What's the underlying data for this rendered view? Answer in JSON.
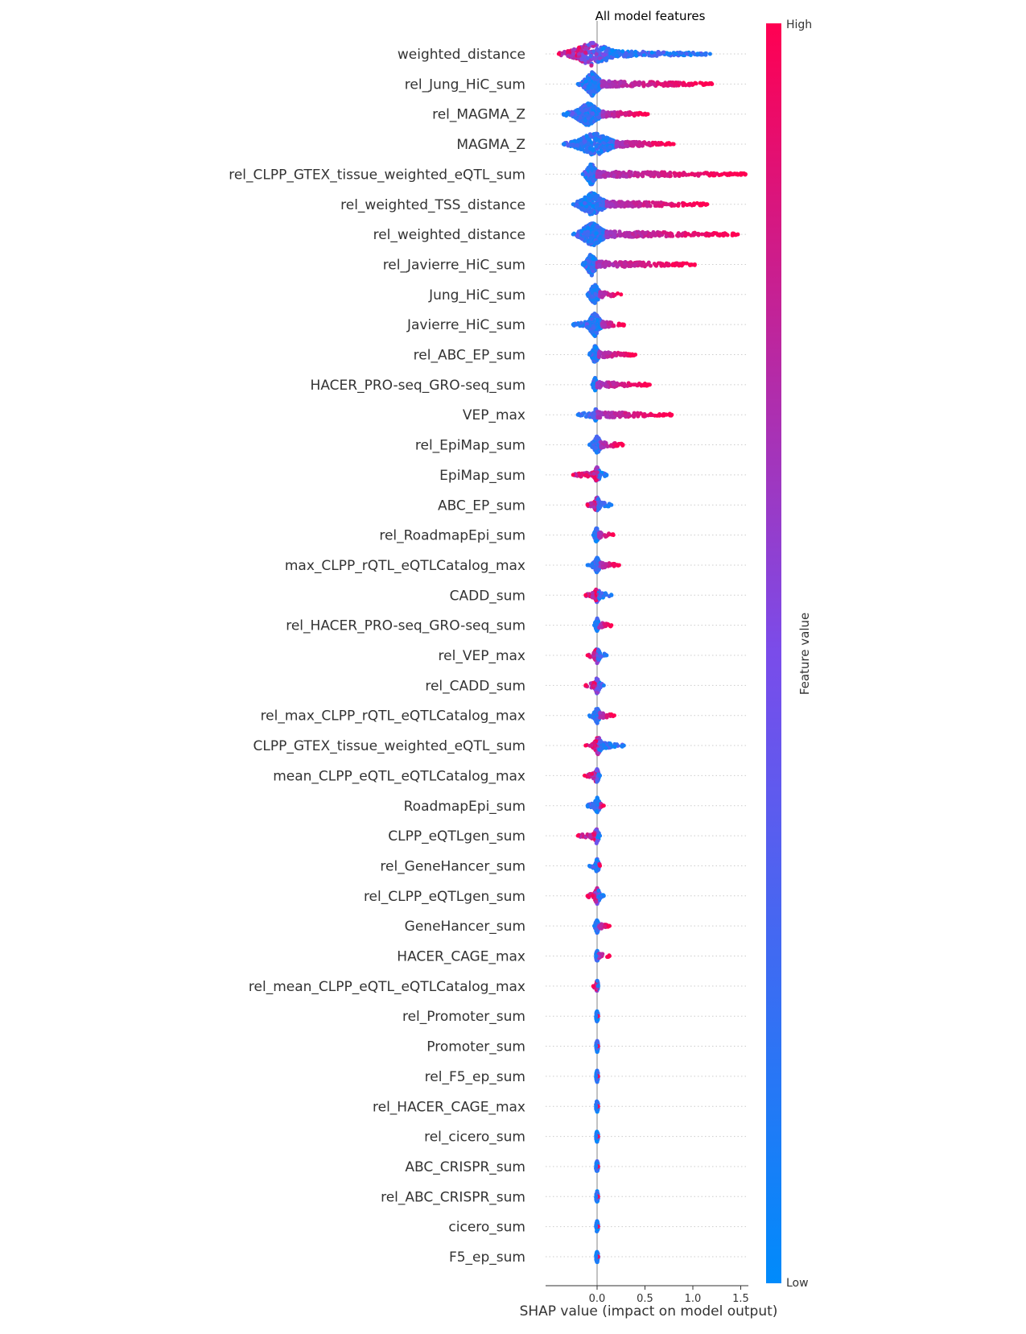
{
  "chart_data": {
    "type": "scatter",
    "title": "All model features",
    "xlabel": "SHAP value (impact on model output)",
    "xlim": [
      -0.5,
      1.6
    ],
    "xticks": [
      0.0,
      0.5,
      1.0,
      1.5
    ],
    "xtick_labels": [
      "0.0",
      "0.5",
      "1.0",
      "1.5"
    ],
    "colorbar": {
      "label": "Feature value",
      "high_label": "High",
      "low_label": "Low",
      "high_color": "#ff0052",
      "low_color": "#008bfb"
    },
    "features": [
      {
        "name": "weighted_distance",
        "min": -0.4,
        "max": 1.18,
        "bulk": [
          -0.3,
          0.2
        ],
        "high_side": "left"
      },
      {
        "name": "rel_Jung_HiC_sum",
        "min": -0.2,
        "max": 1.2,
        "bulk": [
          -0.15,
          0.05
        ],
        "high_side": "right"
      },
      {
        "name": "rel_MAGMA_Z",
        "min": -0.35,
        "max": 0.53,
        "bulk": [
          -0.25,
          0.05
        ],
        "high_side": "right"
      },
      {
        "name": "MAGMA_Z",
        "min": -0.35,
        "max": 0.8,
        "bulk": [
          -0.25,
          0.2
        ],
        "high_side": "right"
      },
      {
        "name": "rel_CLPP_GTEX_tissue_weighted_eQTL_sum",
        "min": -0.15,
        "max": 1.55,
        "bulk": [
          -0.12,
          0.0
        ],
        "high_side": "right"
      },
      {
        "name": "rel_weighted_TSS_distance",
        "min": -0.25,
        "max": 1.15,
        "bulk": [
          -0.2,
          0.1
        ],
        "high_side": "right"
      },
      {
        "name": "rel_weighted_distance",
        "min": -0.25,
        "max": 1.47,
        "bulk": [
          -0.2,
          0.1
        ],
        "high_side": "right"
      },
      {
        "name": "rel_Javierre_HiC_sum",
        "min": -0.15,
        "max": 1.02,
        "bulk": [
          -0.12,
          0.0
        ],
        "high_side": "right"
      },
      {
        "name": "Jung_HiC_sum",
        "min": -0.1,
        "max": 0.25,
        "bulk": [
          -0.08,
          0.03
        ],
        "high_side": "right"
      },
      {
        "name": "Javierre_HiC_sum",
        "min": -0.25,
        "max": 0.28,
        "bulk": [
          -0.1,
          0.05
        ],
        "high_side": "right"
      },
      {
        "name": "rel_ABC_EP_sum",
        "min": -0.08,
        "max": 0.4,
        "bulk": [
          -0.06,
          0.02
        ],
        "high_side": "right"
      },
      {
        "name": "HACER_PRO-seq_GRO-seq_sum",
        "min": -0.05,
        "max": 0.55,
        "bulk": [
          -0.04,
          0.0
        ],
        "high_side": "right"
      },
      {
        "name": "VEP_max",
        "min": -0.2,
        "max": 0.78,
        "bulk": [
          -0.03,
          0.0
        ],
        "high_side": "right"
      },
      {
        "name": "rel_EpiMap_sum",
        "min": -0.08,
        "max": 0.27,
        "bulk": [
          -0.04,
          0.04
        ],
        "high_side": "right"
      },
      {
        "name": "EpiMap_sum",
        "min": -0.25,
        "max": 0.1,
        "bulk": [
          -0.03,
          0.03
        ],
        "high_side": "left"
      },
      {
        "name": "ABC_EP_sum",
        "min": -0.1,
        "max": 0.15,
        "bulk": [
          -0.03,
          0.03
        ],
        "high_side": "left"
      },
      {
        "name": "rel_RoadmapEpi_sum",
        "min": -0.04,
        "max": 0.17,
        "bulk": [
          -0.03,
          0.02
        ],
        "high_side": "right"
      },
      {
        "name": "max_CLPP_rQTL_eQTLCatalog_max",
        "min": -0.1,
        "max": 0.23,
        "bulk": [
          -0.03,
          0.03
        ],
        "high_side": "right"
      },
      {
        "name": "CADD_sum",
        "min": -0.12,
        "max": 0.15,
        "bulk": [
          -0.03,
          0.03
        ],
        "high_side": "left"
      },
      {
        "name": "rel_HACER_PRO-seq_GRO-seq_sum",
        "min": -0.03,
        "max": 0.15,
        "bulk": [
          -0.02,
          0.02
        ],
        "high_side": "right"
      },
      {
        "name": "rel_VEP_max",
        "min": -0.1,
        "max": 0.1,
        "bulk": [
          -0.03,
          0.03
        ],
        "high_side": "left"
      },
      {
        "name": "rel_CADD_sum",
        "min": -0.12,
        "max": 0.07,
        "bulk": [
          -0.03,
          0.03
        ],
        "high_side": "left"
      },
      {
        "name": "rel_max_CLPP_rQTL_eQTLCatalog_max",
        "min": -0.08,
        "max": 0.18,
        "bulk": [
          -0.03,
          0.03
        ],
        "high_side": "right"
      },
      {
        "name": "CLPP_GTEX_tissue_weighted_eQTL_sum",
        "min": -0.12,
        "max": 0.28,
        "bulk": [
          -0.03,
          0.05
        ],
        "high_side": "left"
      },
      {
        "name": "mean_CLPP_eQTL_eQTLCatalog_max",
        "min": -0.13,
        "max": 0.03,
        "bulk": [
          -0.03,
          0.02
        ],
        "high_side": "left"
      },
      {
        "name": "RoadmapEpi_sum",
        "min": -0.1,
        "max": 0.07,
        "bulk": [
          -0.03,
          0.03
        ],
        "high_side": "right"
      },
      {
        "name": "CLPP_eQTLgen_sum",
        "min": -0.2,
        "max": 0.03,
        "bulk": [
          -0.03,
          0.02
        ],
        "high_side": "left"
      },
      {
        "name": "rel_GeneHancer_sum",
        "min": -0.08,
        "max": 0.03,
        "bulk": [
          -0.02,
          0.02
        ],
        "high_side": "right"
      },
      {
        "name": "rel_CLPP_eQTLgen_sum",
        "min": -0.1,
        "max": 0.07,
        "bulk": [
          -0.03,
          0.03
        ],
        "high_side": "left"
      },
      {
        "name": "GeneHancer_sum",
        "min": -0.03,
        "max": 0.13,
        "bulk": [
          -0.02,
          0.02
        ],
        "high_side": "right"
      },
      {
        "name": "HACER_CAGE_max",
        "min": -0.01,
        "max": 0.13,
        "bulk": [
          -0.01,
          0.01
        ],
        "high_side": "right"
      },
      {
        "name": "rel_mean_CLPP_eQTL_eQTLCatalog_max",
        "min": -0.04,
        "max": 0.01,
        "bulk": [
          -0.01,
          0.01
        ],
        "high_side": "left"
      },
      {
        "name": "rel_Promoter_sum",
        "min": -0.01,
        "max": 0.01,
        "bulk": [
          -0.01,
          0.01
        ],
        "high_side": "right"
      },
      {
        "name": "Promoter_sum",
        "min": -0.01,
        "max": 0.01,
        "bulk": [
          -0.01,
          0.01
        ],
        "high_side": "right"
      },
      {
        "name": "rel_F5_ep_sum",
        "min": -0.01,
        "max": 0.01,
        "bulk": [
          -0.01,
          0.01
        ],
        "high_side": "right"
      },
      {
        "name": "rel_HACER_CAGE_max",
        "min": -0.01,
        "max": 0.01,
        "bulk": [
          -0.01,
          0.01
        ],
        "high_side": "right"
      },
      {
        "name": "rel_cicero_sum",
        "min": -0.01,
        "max": 0.01,
        "bulk": [
          -0.01,
          0.01
        ],
        "high_side": "right"
      },
      {
        "name": "ABC_CRISPR_sum",
        "min": -0.01,
        "max": 0.01,
        "bulk": [
          -0.01,
          0.01
        ],
        "high_side": "right"
      },
      {
        "name": "rel_ABC_CRISPR_sum",
        "min": -0.01,
        "max": 0.01,
        "bulk": [
          -0.01,
          0.01
        ],
        "high_side": "right"
      },
      {
        "name": "cicero_sum",
        "min": -0.01,
        "max": 0.01,
        "bulk": [
          -0.01,
          0.01
        ],
        "high_side": "right"
      },
      {
        "name": "F5_ep_sum",
        "min": -0.01,
        "max": 0.01,
        "bulk": [
          -0.01,
          0.01
        ],
        "high_side": "right"
      }
    ]
  }
}
